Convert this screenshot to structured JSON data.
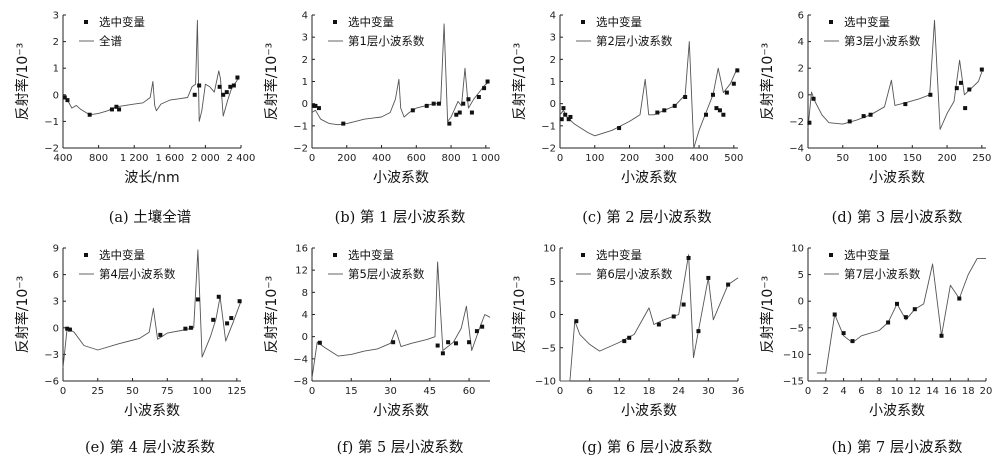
{
  "legend": {
    "markers": "选中变量"
  },
  "chart_data": [
    {
      "type": "line",
      "caption": "(a) 土壤全谱",
      "xlabel": "波长/nm",
      "ylabel": "反射率/10⁻³",
      "line_name": "全谱",
      "xlim": [
        400,
        2400
      ],
      "ylim": [
        -2,
        3
      ],
      "xticks": [
        400,
        800,
        1200,
        1600,
        2000,
        2400
      ],
      "xtick_labels": [
        "400",
        "800",
        "1 200",
        "1 600",
        "2 000",
        "2 400"
      ],
      "yticks": [
        -2,
        -1,
        0,
        1,
        2,
        3
      ],
      "line": [
        [
          400,
          -0.1
        ],
        [
          450,
          -0.2
        ],
        [
          500,
          -0.5
        ],
        [
          550,
          -0.4
        ],
        [
          600,
          -0.55
        ],
        [
          700,
          -0.75
        ],
        [
          800,
          -0.7
        ],
        [
          900,
          -0.6
        ],
        [
          1000,
          -0.45
        ],
        [
          1100,
          -0.4
        ],
        [
          1200,
          -0.35
        ],
        [
          1300,
          -0.3
        ],
        [
          1380,
          -0.1
        ],
        [
          1410,
          0.5
        ],
        [
          1430,
          -0.4
        ],
        [
          1450,
          -0.6
        ],
        [
          1500,
          -0.35
        ],
        [
          1600,
          -0.2
        ],
        [
          1700,
          -0.15
        ],
        [
          1800,
          -0.1
        ],
        [
          1850,
          0.3
        ],
        [
          1890,
          0.4
        ],
        [
          1910,
          2.8
        ],
        [
          1930,
          -1.0
        ],
        [
          1960,
          -0.6
        ],
        [
          2000,
          0.4
        ],
        [
          2050,
          0.3
        ],
        [
          2100,
          0.1
        ],
        [
          2150,
          0.9
        ],
        [
          2170,
          0.6
        ],
        [
          2200,
          -0.8
        ],
        [
          2250,
          -0.2
        ],
        [
          2300,
          0.3
        ],
        [
          2350,
          0.5
        ],
        [
          2380,
          0.7
        ]
      ],
      "points": [
        [
          420,
          -0.1
        ],
        [
          450,
          -0.2
        ],
        [
          700,
          -0.75
        ],
        [
          950,
          -0.55
        ],
        [
          1000,
          -0.45
        ],
        [
          1030,
          -0.55
        ],
        [
          1880,
          0.0
        ],
        [
          1930,
          0.35
        ],
        [
          2160,
          0.3
        ],
        [
          2200,
          0.0
        ],
        [
          2240,
          0.1
        ],
        [
          2280,
          0.3
        ],
        [
          2320,
          0.35
        ],
        [
          2360,
          0.65
        ]
      ]
    },
    {
      "type": "line",
      "caption": "(b) 第 1 层小波系数",
      "xlabel": "小波系数",
      "ylabel": "反射率/10⁻³",
      "line_name": "第1层小波系数",
      "xlim": [
        0,
        1024
      ],
      "ylim": [
        -2,
        4
      ],
      "xticks": [
        0,
        200,
        400,
        600,
        800,
        1000
      ],
      "xtick_labels": [
        "0",
        "200",
        "400",
        "600",
        "800",
        "1 000"
      ],
      "yticks": [
        -2,
        -1,
        0,
        1,
        2,
        3,
        4
      ],
      "line": [
        [
          0,
          -0.4
        ],
        [
          20,
          -0.3
        ],
        [
          50,
          -0.7
        ],
        [
          100,
          -0.9
        ],
        [
          150,
          -0.95
        ],
        [
          200,
          -0.9
        ],
        [
          250,
          -0.8
        ],
        [
          300,
          -0.7
        ],
        [
          350,
          -0.65
        ],
        [
          400,
          -0.6
        ],
        [
          450,
          -0.4
        ],
        [
          480,
          0.2
        ],
        [
          500,
          1.1
        ],
        [
          510,
          -0.2
        ],
        [
          530,
          -0.6
        ],
        [
          560,
          -0.4
        ],
        [
          600,
          -0.2
        ],
        [
          650,
          -0.1
        ],
        [
          700,
          0.0
        ],
        [
          740,
          0.0
        ],
        [
          760,
          3.6
        ],
        [
          780,
          -0.8
        ],
        [
          800,
          -0.6
        ],
        [
          840,
          0.1
        ],
        [
          860,
          -0.1
        ],
        [
          880,
          1.6
        ],
        [
          900,
          -0.2
        ],
        [
          930,
          0.2
        ],
        [
          960,
          0.5
        ],
        [
          990,
          0.8
        ],
        [
          1020,
          1.0
        ]
      ],
      "points": [
        [
          10,
          -0.1
        ],
        [
          20,
          -0.1
        ],
        [
          40,
          -0.2
        ],
        [
          180,
          -0.9
        ],
        [
          580,
          -0.3
        ],
        [
          660,
          -0.1
        ],
        [
          700,
          0.0
        ],
        [
          730,
          0.0
        ],
        [
          790,
          -0.9
        ],
        [
          830,
          -0.5
        ],
        [
          850,
          -0.4
        ],
        [
          870,
          0.0
        ],
        [
          900,
          0.2
        ],
        [
          920,
          -0.4
        ],
        [
          960,
          0.3
        ],
        [
          990,
          0.7
        ],
        [
          1010,
          1.0
        ]
      ]
    },
    {
      "type": "line",
      "caption": "(c) 第 2 层小波系数",
      "xlabel": "小波系数",
      "ylabel": "反射率/10⁻³",
      "line_name": "第2层小波系数",
      "xlim": [
        0,
        512
      ],
      "ylim": [
        -2,
        4
      ],
      "xticks": [
        0,
        100,
        200,
        300,
        400,
        500
      ],
      "xtick_labels": [
        "0",
        "100",
        "200",
        "300",
        "400",
        "500"
      ],
      "yticks": [
        -2,
        -1,
        0,
        1,
        2,
        3,
        4
      ],
      "line": [
        [
          0,
          -0.5
        ],
        [
          10,
          -0.3
        ],
        [
          20,
          -0.6
        ],
        [
          40,
          -0.9
        ],
        [
          60,
          -1.1
        ],
        [
          80,
          -1.3
        ],
        [
          100,
          -1.45
        ],
        [
          150,
          -1.2
        ],
        [
          200,
          -0.8
        ],
        [
          230,
          -0.5
        ],
        [
          245,
          1.1
        ],
        [
          255,
          -0.5
        ],
        [
          270,
          -0.5
        ],
        [
          300,
          -0.3
        ],
        [
          330,
          -0.1
        ],
        [
          360,
          0.4
        ],
        [
          372,
          2.8
        ],
        [
          385,
          -2.0
        ],
        [
          400,
          -1.2
        ],
        [
          420,
          -0.4
        ],
        [
          440,
          0.4
        ],
        [
          455,
          1.6
        ],
        [
          470,
          0.5
        ],
        [
          490,
          0.9
        ],
        [
          510,
          1.6
        ]
      ],
      "points": [
        [
          5,
          -0.7
        ],
        [
          10,
          -0.2
        ],
        [
          15,
          -0.5
        ],
        [
          25,
          -0.7
        ],
        [
          30,
          -0.6
        ],
        [
          170,
          -1.1
        ],
        [
          280,
          -0.4
        ],
        [
          300,
          -0.3
        ],
        [
          330,
          -0.1
        ],
        [
          360,
          0.3
        ],
        [
          420,
          -0.5
        ],
        [
          440,
          0.4
        ],
        [
          450,
          -0.2
        ],
        [
          460,
          -0.3
        ],
        [
          470,
          -0.5
        ],
        [
          480,
          0.5
        ],
        [
          500,
          0.9
        ],
        [
          510,
          1.5
        ]
      ]
    },
    {
      "type": "line",
      "caption": "(d) 第 3 层小波系数",
      "xlabel": "小波系数",
      "ylabel": "反射率/10⁻³",
      "line_name": "第3层小波系数",
      "xlim": [
        0,
        256
      ],
      "ylim": [
        -4,
        6
      ],
      "xticks": [
        0,
        50,
        100,
        150,
        200,
        250
      ],
      "xtick_labels": [
        "0",
        "50",
        "100",
        "150",
        "200",
        "250"
      ],
      "yticks": [
        -4,
        -2,
        0,
        2,
        4,
        6
      ],
      "line": [
        [
          0,
          -2.5
        ],
        [
          5,
          0.2
        ],
        [
          10,
          -0.5
        ],
        [
          20,
          -1.5
        ],
        [
          30,
          -2.1
        ],
        [
          50,
          -2.2
        ],
        [
          70,
          -1.9
        ],
        [
          90,
          -1.5
        ],
        [
          110,
          -0.9
        ],
        [
          120,
          1.1
        ],
        [
          125,
          -0.8
        ],
        [
          140,
          -0.6
        ],
        [
          160,
          -0.3
        ],
        [
          175,
          0.0
        ],
        [
          182,
          5.6
        ],
        [
          190,
          -2.6
        ],
        [
          200,
          -1.4
        ],
        [
          210,
          -0.5
        ],
        [
          218,
          2.6
        ],
        [
          225,
          0.0
        ],
        [
          235,
          0.5
        ],
        [
          245,
          1.0
        ],
        [
          252,
          2.0
        ]
      ],
      "points": [
        [
          2,
          -2.1
        ],
        [
          8,
          -0.3
        ],
        [
          60,
          -2.0
        ],
        [
          80,
          -1.6
        ],
        [
          90,
          -1.5
        ],
        [
          140,
          -0.7
        ],
        [
          176,
          0.0
        ],
        [
          214,
          0.5
        ],
        [
          220,
          0.9
        ],
        [
          226,
          -1.0
        ],
        [
          232,
          0.4
        ],
        [
          250,
          1.9
        ]
      ]
    },
    {
      "type": "line",
      "caption": "(e) 第 4 层小波系数",
      "xlabel": "小波系数",
      "ylabel": "反射率/10⁻³",
      "line_name": "第4层小波系数",
      "xlim": [
        0,
        128
      ],
      "ylim": [
        -6,
        9
      ],
      "xticks": [
        0,
        25,
        50,
        75,
        100,
        125
      ],
      "xtick_labels": [
        "0",
        "25",
        "50",
        "75",
        "100",
        "125"
      ],
      "yticks": [
        -6,
        -3,
        0,
        3,
        6,
        9
      ],
      "line": [
        [
          0,
          -4.5
        ],
        [
          3,
          0.0
        ],
        [
          8,
          -0.5
        ],
        [
          15,
          -2.0
        ],
        [
          25,
          -2.5
        ],
        [
          40,
          -1.8
        ],
        [
          55,
          -1.2
        ],
        [
          62,
          -0.5
        ],
        [
          65,
          2.2
        ],
        [
          68,
          -1.3
        ],
        [
          75,
          -0.6
        ],
        [
          85,
          -0.3
        ],
        [
          94,
          0.0
        ],
        [
          97,
          8.8
        ],
        [
          100,
          -3.3
        ],
        [
          106,
          -1.0
        ],
        [
          110,
          1.0
        ],
        [
          113,
          3.5
        ],
        [
          117,
          -1.5
        ],
        [
          122,
          0.5
        ],
        [
          128,
          3.0
        ]
      ],
      "points": [
        [
          3,
          -0.1
        ],
        [
          5,
          -0.2
        ],
        [
          70,
          -0.8
        ],
        [
          88,
          -0.1
        ],
        [
          92,
          0.0
        ],
        [
          97,
          3.2
        ],
        [
          108,
          0.9
        ],
        [
          112,
          3.5
        ],
        [
          118,
          0.5
        ],
        [
          121,
          1.1
        ],
        [
          127,
          3.0
        ]
      ]
    },
    {
      "type": "line",
      "caption": "(f) 第 5 层小波系数",
      "xlabel": "小波系数",
      "ylabel": "反射率/10⁻³",
      "line_name": "第5层小波系数",
      "xlim": [
        0,
        68
      ],
      "ylim": [
        -8,
        16
      ],
      "xticks": [
        0,
        15,
        30,
        45,
        60
      ],
      "xtick_labels": [
        "0",
        "15",
        "30",
        "45",
        "60"
      ],
      "yticks": [
        -8,
        -4,
        0,
        4,
        8,
        12,
        16
      ],
      "line": [
        [
          0,
          -7.5
        ],
        [
          2,
          -1.0
        ],
        [
          5,
          -2.0
        ],
        [
          10,
          -3.5
        ],
        [
          15,
          -3.2
        ],
        [
          20,
          -2.6
        ],
        [
          25,
          -2.2
        ],
        [
          30,
          -1.2
        ],
        [
          32,
          1.2
        ],
        [
          34,
          -1.8
        ],
        [
          38,
          -1.2
        ],
        [
          44,
          -0.5
        ],
        [
          47,
          0.0
        ],
        [
          48,
          13.5
        ],
        [
          50,
          -2.5
        ],
        [
          54,
          -1.0
        ],
        [
          57,
          1.5
        ],
        [
          59,
          5.5
        ],
        [
          61,
          -2.5
        ],
        [
          64,
          1.5
        ],
        [
          66,
          4.0
        ],
        [
          68,
          3.5
        ]
      ],
      "points": [
        [
          3,
          -1.1
        ],
        [
          31,
          -1.0
        ],
        [
          48,
          -1.6
        ],
        [
          50,
          -3.0
        ],
        [
          52,
          -1.0
        ],
        [
          55,
          -1.2
        ],
        [
          60,
          -1.0
        ],
        [
          63,
          1.0
        ],
        [
          65,
          1.8
        ]
      ]
    },
    {
      "type": "line",
      "caption": "(g) 第 6 层小波系数",
      "xlabel": "小波系数",
      "ylabel": "反射率/10⁻³",
      "line_name": "第6层小波系数",
      "xlim": [
        0,
        36
      ],
      "ylim": [
        -10,
        10
      ],
      "xticks": [
        0,
        6,
        12,
        18,
        24,
        30,
        36
      ],
      "xtick_labels": [
        "0",
        "6",
        "12",
        "18",
        "24",
        "30",
        "36"
      ],
      "yticks": [
        -10,
        -5,
        0,
        5,
        10
      ],
      "line": [
        [
          0,
          -10
        ],
        [
          2,
          -10
        ],
        [
          3,
          -1.0
        ],
        [
          4,
          -3.0
        ],
        [
          6,
          -4.5
        ],
        [
          8,
          -5.5
        ],
        [
          12,
          -4.2
        ],
        [
          15,
          -3.0
        ],
        [
          18,
          1.0
        ],
        [
          19,
          -1.5
        ],
        [
          21,
          -0.8
        ],
        [
          24,
          0.0
        ],
        [
          26,
          9.0
        ],
        [
          27,
          -6.5
        ],
        [
          28,
          -2.5
        ],
        [
          30,
          5.5
        ],
        [
          31,
          -0.8
        ],
        [
          34,
          4.5
        ],
        [
          36,
          5.5
        ]
      ],
      "points": [
        [
          3.3,
          -1.0
        ],
        [
          13,
          -4.0
        ],
        [
          14,
          -3.5
        ],
        [
          20,
          -1.5
        ],
        [
          23,
          -0.3
        ],
        [
          25,
          1.5
        ],
        [
          26,
          8.5
        ],
        [
          28,
          -2.5
        ],
        [
          30,
          5.5
        ],
        [
          34,
          4.5
        ]
      ]
    },
    {
      "type": "line",
      "caption": "(h) 第 7 层小波系数",
      "xlabel": "小波系数",
      "ylabel": "反射率/10⁻³",
      "line_name": "第7层小波系数",
      "xlim": [
        0,
        20
      ],
      "ylim": [
        -15,
        10
      ],
      "xticks": [
        0,
        2,
        4,
        6,
        8,
        10,
        12,
        14,
        16,
        18,
        20
      ],
      "xtick_labels": [
        "0",
        "2",
        "4",
        "6",
        "8",
        "10",
        "12",
        "14",
        "16",
        "18",
        "20"
      ],
      "yticks": [
        -15,
        -10,
        -5,
        0,
        5,
        10
      ],
      "line": [
        [
          1,
          -13.5
        ],
        [
          2,
          -13.5
        ],
        [
          3,
          -2.5
        ],
        [
          4,
          -6.5
        ],
        [
          5,
          -7.8
        ],
        [
          6,
          -6.5
        ],
        [
          8,
          -5.5
        ],
        [
          9,
          -4.0
        ],
        [
          10,
          -0.5
        ],
        [
          11,
          -3.5
        ],
        [
          12,
          -1.5
        ],
        [
          13,
          -0.5
        ],
        [
          14,
          7.0
        ],
        [
          15,
          -6.5
        ],
        [
          16,
          3.0
        ],
        [
          17,
          0.5
        ],
        [
          18,
          5.0
        ],
        [
          19,
          8.0
        ],
        [
          20,
          8.0
        ]
      ],
      "points": [
        [
          3,
          -2.5
        ],
        [
          4,
          -6.0
        ],
        [
          5,
          -7.5
        ],
        [
          9,
          -4.0
        ],
        [
          10,
          -0.5
        ],
        [
          11,
          -3.0
        ],
        [
          12,
          -1.5
        ],
        [
          15,
          -6.5
        ],
        [
          17,
          0.5
        ]
      ]
    }
  ]
}
